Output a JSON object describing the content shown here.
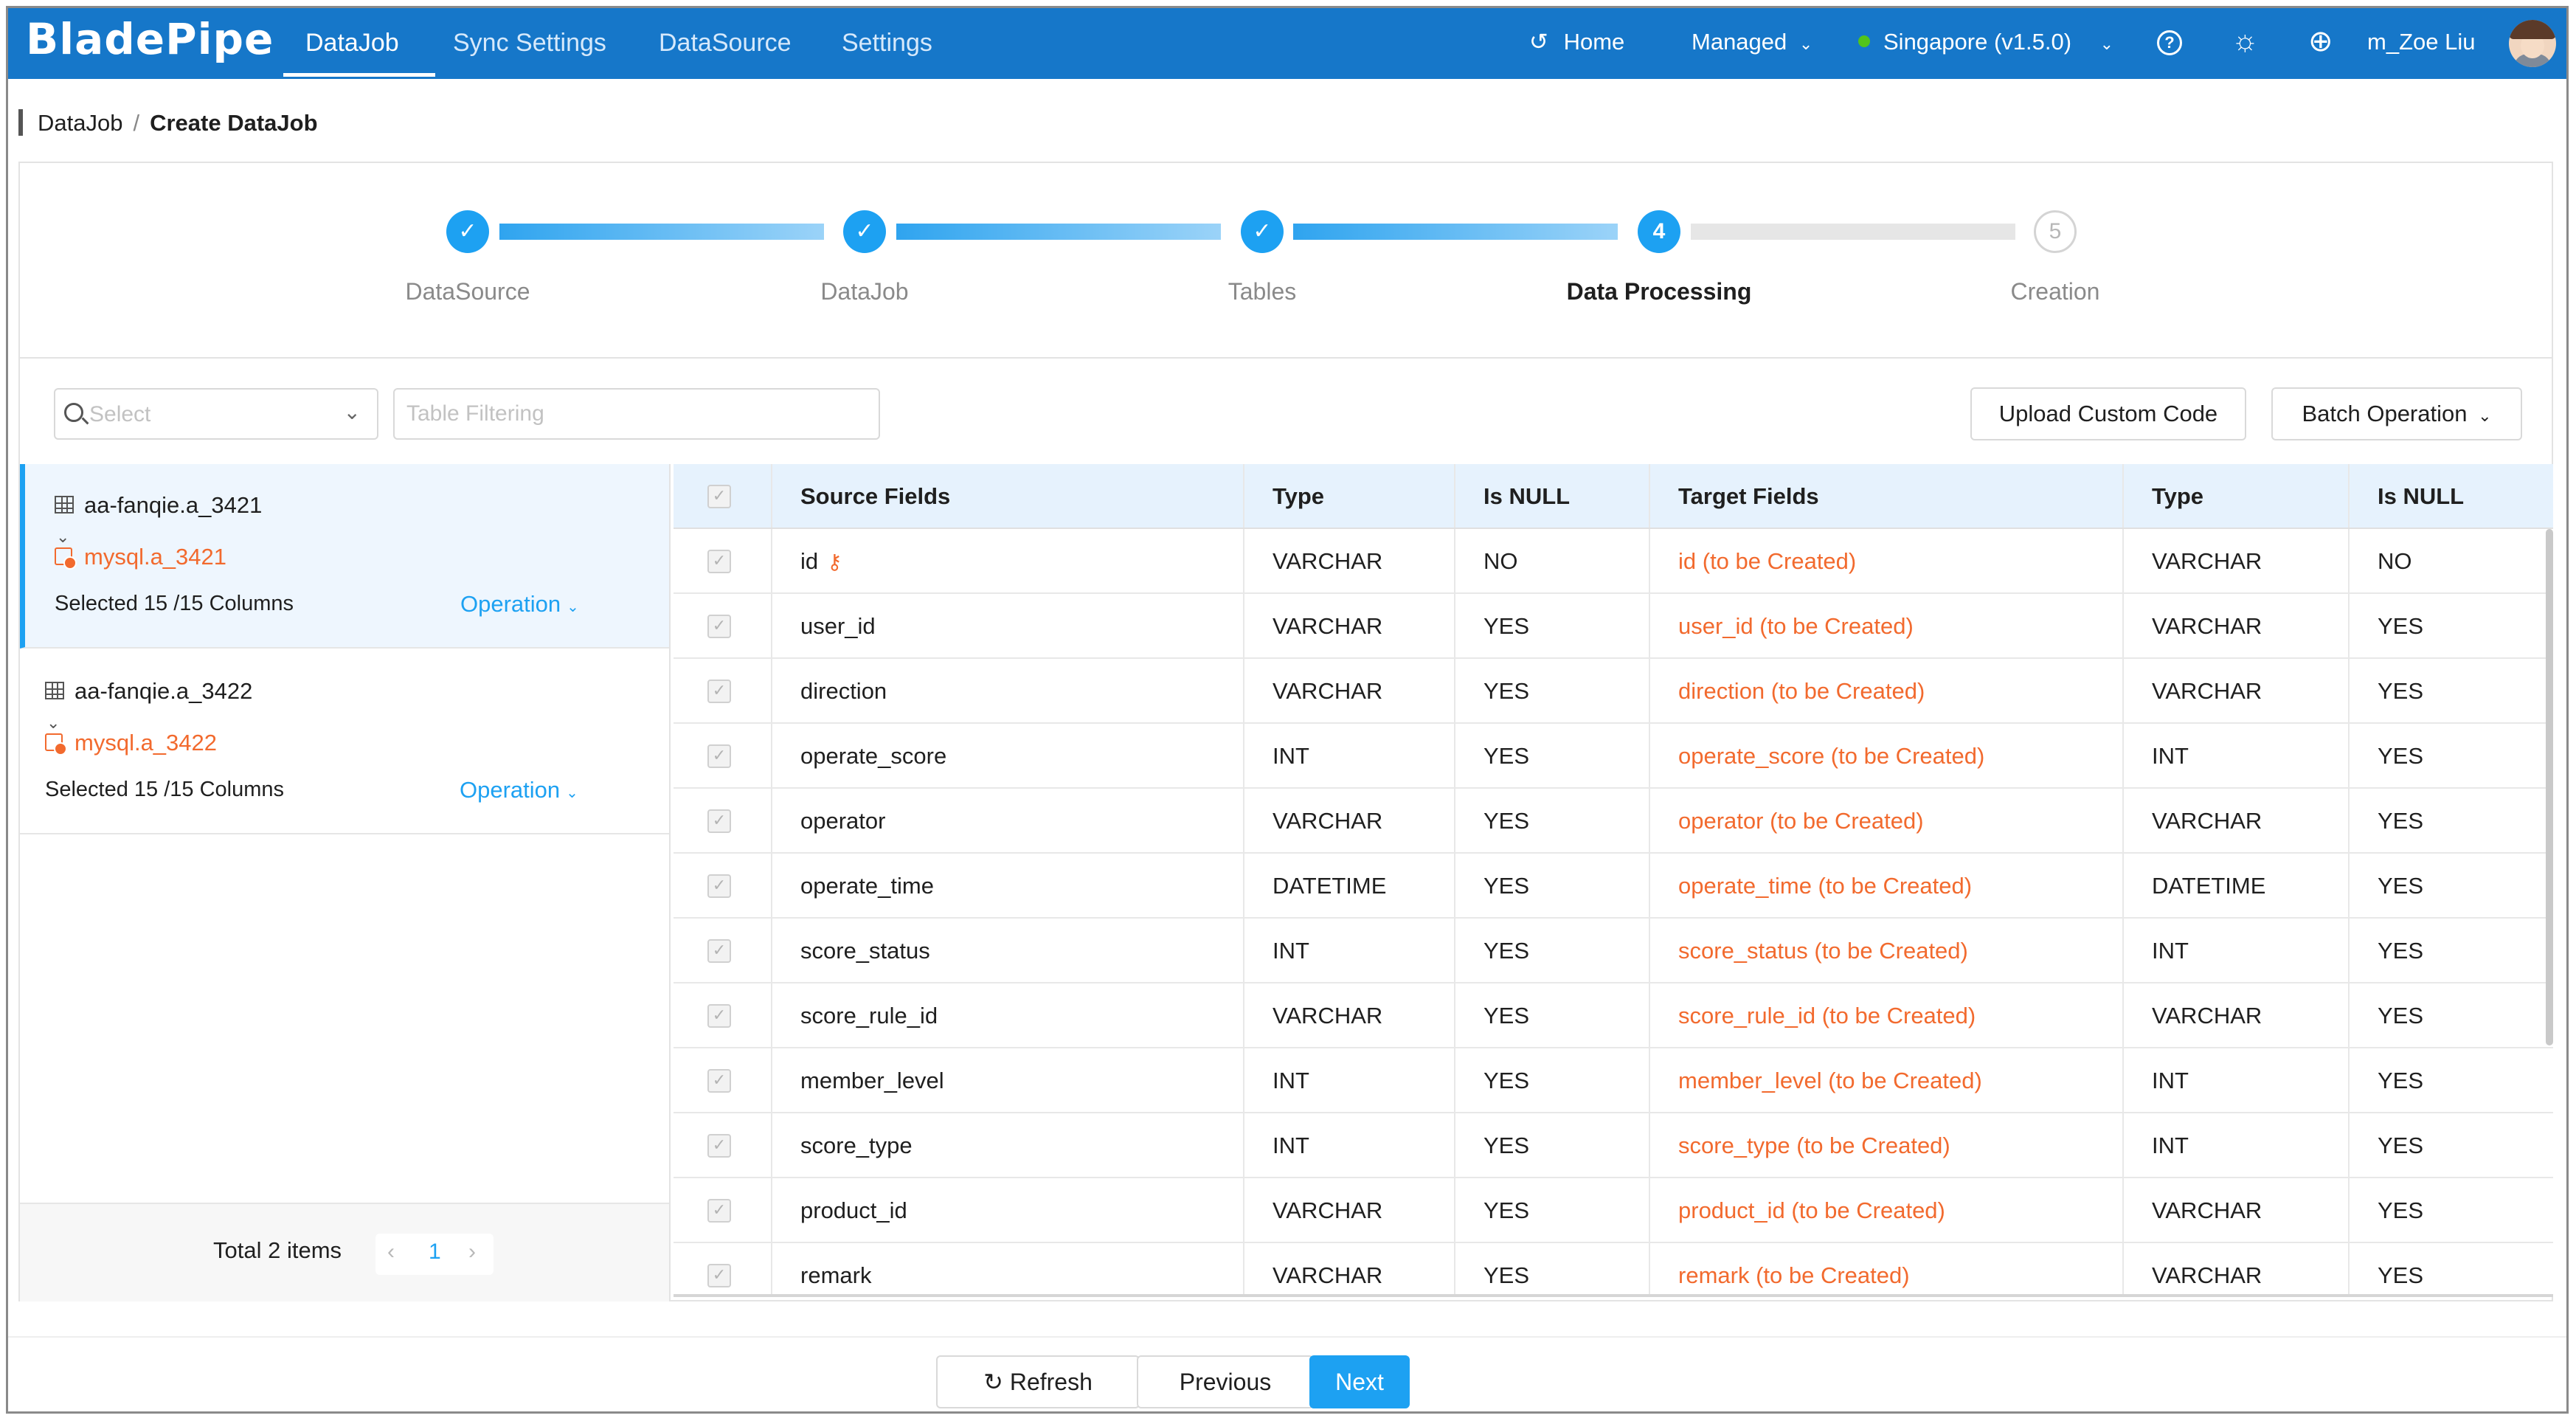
{
  "app": {
    "logo": "BladePipe",
    "nav": [
      "DataJob",
      "Sync Settings",
      "DataSource",
      "Settings"
    ],
    "home_label": "Home",
    "managed_label": "Managed",
    "region_label": "Singapore (v1.5.0)",
    "user_name": "m_Zoe Liu",
    "brand_color": "#1677c9",
    "accent_color": "#1da1f2",
    "warning_color": "#f26a2e"
  },
  "breadcrumb": {
    "parent": "DataJob",
    "sep": "/",
    "current": "Create DataJob"
  },
  "steps": [
    {
      "label": "DataSource",
      "status": "done"
    },
    {
      "label": "DataJob",
      "status": "done"
    },
    {
      "label": "Tables",
      "status": "done"
    },
    {
      "label": "Data Processing",
      "status": "current",
      "number": "4"
    },
    {
      "label": "Creation",
      "status": "pending",
      "number": "5"
    }
  ],
  "toolbar": {
    "select_placeholder": "Select",
    "filter_placeholder": "Table Filtering",
    "upload_label": "Upload Custom Code",
    "batch_label": "Batch Operation"
  },
  "tables": [
    {
      "source": "aa-fanqie.a_3421",
      "target": "mysql.a_3421",
      "columns": "Selected 15 /15 Columns",
      "operation": "Operation"
    },
    {
      "source": "aa-fanqie.a_3422",
      "target": "mysql.a_3422",
      "columns": "Selected 15 /15 Columns",
      "operation": "Operation"
    }
  ],
  "pager": {
    "total": "Total 2 items",
    "page": "1"
  },
  "field_headers": [
    "Source Fields",
    "Type",
    "Is NULL",
    "Target Fields",
    "Type",
    "Is NULL"
  ],
  "fields": [
    {
      "source": "id",
      "type": "VARCHAR",
      "null": "NO",
      "target": "id (to be Created)",
      "ttype": "VARCHAR",
      "tnull": "NO"
    },
    {
      "source": "user_id",
      "type": "VARCHAR",
      "null": "YES",
      "target": "user_id (to be Created)",
      "ttype": "VARCHAR",
      "tnull": "YES"
    },
    {
      "source": "direction",
      "type": "VARCHAR",
      "null": "YES",
      "target": "direction (to be Created)",
      "ttype": "VARCHAR",
      "tnull": "YES"
    },
    {
      "source": "operate_score",
      "type": "INT",
      "null": "YES",
      "target": "operate_score (to be Created)",
      "ttype": "INT",
      "tnull": "YES"
    },
    {
      "source": "operator",
      "type": "VARCHAR",
      "null": "YES",
      "target": "operator (to be Created)",
      "ttype": "VARCHAR",
      "tnull": "YES"
    },
    {
      "source": "operate_time",
      "type": "DATETIME",
      "null": "YES",
      "target": "operate_time (to be Created)",
      "ttype": "DATETIME",
      "tnull": "YES"
    },
    {
      "source": "score_status",
      "type": "INT",
      "null": "YES",
      "target": "score_status (to be Created)",
      "ttype": "INT",
      "tnull": "YES"
    },
    {
      "source": "score_rule_id",
      "type": "VARCHAR",
      "null": "YES",
      "target": "score_rule_id (to be Created)",
      "ttype": "VARCHAR",
      "tnull": "YES"
    },
    {
      "source": "member_level",
      "type": "INT",
      "null": "YES",
      "target": "member_level (to be Created)",
      "ttype": "INT",
      "tnull": "YES"
    },
    {
      "source": "score_type",
      "type": "INT",
      "null": "YES",
      "target": "score_type (to be Created)",
      "ttype": "INT",
      "tnull": "YES"
    },
    {
      "source": "product_id",
      "type": "VARCHAR",
      "null": "YES",
      "target": "product_id (to be Created)",
      "ttype": "VARCHAR",
      "tnull": "YES"
    },
    {
      "source": "remark",
      "type": "VARCHAR",
      "null": "YES",
      "target": "remark (to be Created)",
      "ttype": "VARCHAR",
      "tnull": "YES"
    }
  ],
  "footer": {
    "refresh_label": "Refresh",
    "previous_label": "Previous",
    "next_label": "Next"
  }
}
